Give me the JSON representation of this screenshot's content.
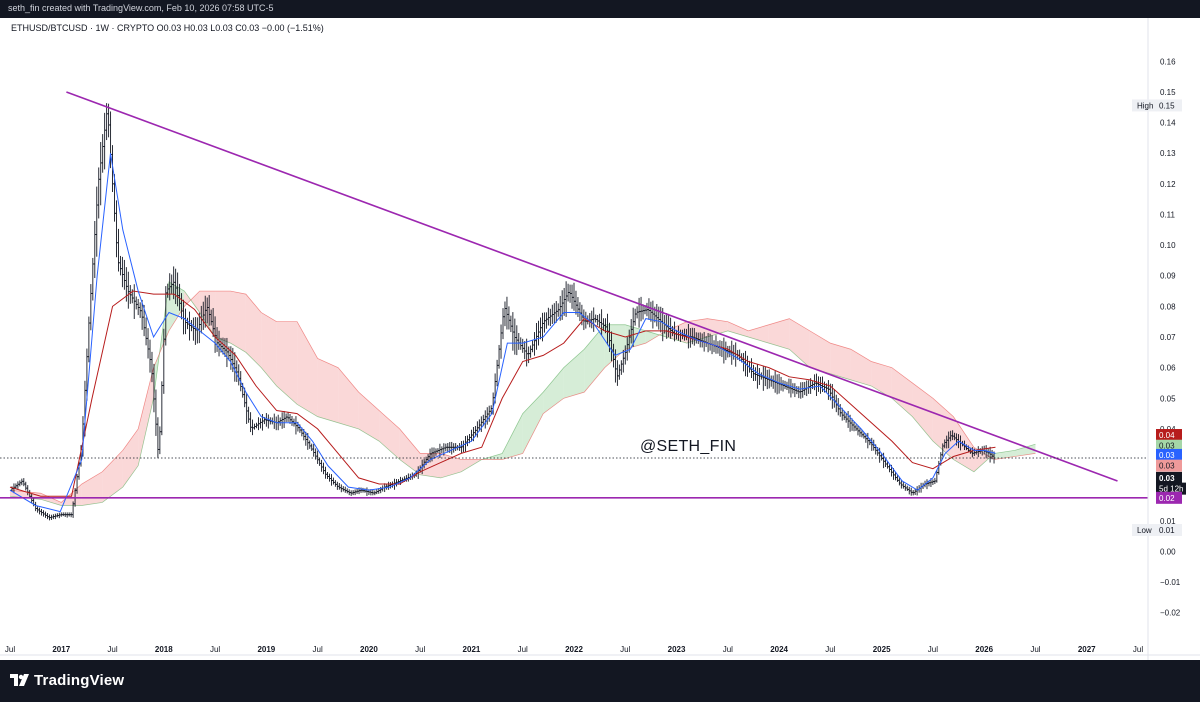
{
  "header": {
    "credit": "seth_fin created with TradingView.com, Feb 10, 2026 07:58 UTC-5"
  },
  "legend": {
    "symbol_line": "ETHUSD/BTCUSD · 1W · CRYPTO  O0.03  H0.03  L0.03  C0.03  −0.00 (−1.51%)"
  },
  "watermark": "@SETH_FIN",
  "footer": {
    "brand": "TradingView",
    "logo_icon": "tradingview-logo-icon"
  },
  "colors": {
    "candle": "#131722",
    "tenkan": "#2962ff",
    "kijun": "#b71c1c",
    "span_a": "#43a047",
    "span_b": "#e53935",
    "cloud_bull": "#a5d6a7",
    "cloud_bear": "#f4a9a9",
    "trendline": "#9c27b0",
    "support": "#9c27b0"
  },
  "chart_data": {
    "type": "line",
    "symbol": "ETHUSD/BTCUSD",
    "timeframe": "1W",
    "ylim": [
      -0.025,
      0.165
    ],
    "yticks": [
      "0.16",
      "0.15",
      "0.14",
      "0.13",
      "0.12",
      "0.11",
      "0.10",
      "0.09",
      "0.08",
      "0.07",
      "0.06",
      "0.05",
      "0.04",
      "0.03",
      "0.02",
      "0.01",
      "0.00",
      "−0.01",
      "−0.02"
    ],
    "ytick_values": [
      0.16,
      0.15,
      0.14,
      0.13,
      0.12,
      0.11,
      0.1,
      0.09,
      0.08,
      0.07,
      0.06,
      0.05,
      0.04,
      0.03,
      0.02,
      0.01,
      0.0,
      -0.01,
      -0.02
    ],
    "xlim": [
      2016.5,
      2027.5
    ],
    "xticks": [
      {
        "label": "Jul",
        "x": 2016.5
      },
      {
        "label": "2017",
        "x": 2017.0
      },
      {
        "label": "Jul",
        "x": 2017.5
      },
      {
        "label": "2018",
        "x": 2018.0
      },
      {
        "label": "Jul",
        "x": 2018.5
      },
      {
        "label": "2019",
        "x": 2019.0
      },
      {
        "label": "Jul",
        "x": 2019.5
      },
      {
        "label": "2020",
        "x": 2020.0
      },
      {
        "label": "Jul",
        "x": 2020.5
      },
      {
        "label": "2021",
        "x": 2021.0
      },
      {
        "label": "Jul",
        "x": 2021.5
      },
      {
        "label": "2022",
        "x": 2022.0
      },
      {
        "label": "Jul",
        "x": 2022.5
      },
      {
        "label": "2023",
        "x": 2023.0
      },
      {
        "label": "Jul",
        "x": 2023.5
      },
      {
        "label": "2024",
        "x": 2024.0
      },
      {
        "label": "Jul",
        "x": 2024.5
      },
      {
        "label": "2025",
        "x": 2025.0
      },
      {
        "label": "Jul",
        "x": 2025.5
      },
      {
        "label": "2026",
        "x": 2026.0
      },
      {
        "label": "Jul",
        "x": 2026.5
      },
      {
        "label": "2027",
        "x": 2027.0
      },
      {
        "label": "Jul",
        "x": 2027.5
      }
    ],
    "price": [
      [
        2016.5,
        0.02
      ],
      [
        2016.62,
        0.023
      ],
      [
        2016.75,
        0.014
      ],
      [
        2016.88,
        0.011
      ],
      [
        2016.99,
        0.012
      ],
      [
        2017.1,
        0.012
      ],
      [
        2017.2,
        0.035
      ],
      [
        2017.27,
        0.075
      ],
      [
        2017.36,
        0.12
      ],
      [
        2017.45,
        0.145
      ],
      [
        2017.55,
        0.095
      ],
      [
        2017.65,
        0.085
      ],
      [
        2017.78,
        0.078
      ],
      [
        2017.88,
        0.06
      ],
      [
        2017.95,
        0.03
      ],
      [
        2018.02,
        0.085
      ],
      [
        2018.1,
        0.088
      ],
      [
        2018.2,
        0.075
      ],
      [
        2018.32,
        0.072
      ],
      [
        2018.42,
        0.08
      ],
      [
        2018.52,
        0.068
      ],
      [
        2018.62,
        0.065
      ],
      [
        2018.72,
        0.058
      ],
      [
        2018.85,
        0.04
      ],
      [
        2018.98,
        0.043
      ],
      [
        2019.1,
        0.042
      ],
      [
        2019.2,
        0.044
      ],
      [
        2019.32,
        0.04
      ],
      [
        2019.45,
        0.033
      ],
      [
        2019.58,
        0.025
      ],
      [
        2019.7,
        0.021
      ],
      [
        2019.82,
        0.019
      ],
      [
        2019.92,
        0.02
      ],
      [
        2020.05,
        0.019
      ],
      [
        2020.15,
        0.021
      ],
      [
        2020.3,
        0.023
      ],
      [
        2020.45,
        0.025
      ],
      [
        2020.6,
        0.032
      ],
      [
        2020.75,
        0.034
      ],
      [
        2020.9,
        0.034
      ],
      [
        2021.05,
        0.04
      ],
      [
        2021.2,
        0.047
      ],
      [
        2021.32,
        0.08
      ],
      [
        2021.42,
        0.07
      ],
      [
        2021.55,
        0.064
      ],
      [
        2021.7,
        0.075
      ],
      [
        2021.85,
        0.079
      ],
      [
        2021.95,
        0.085
      ],
      [
        2022.1,
        0.075
      ],
      [
        2022.2,
        0.076
      ],
      [
        2022.32,
        0.073
      ],
      [
        2022.42,
        0.057
      ],
      [
        2022.5,
        0.065
      ],
      [
        2022.6,
        0.078
      ],
      [
        2022.72,
        0.079
      ],
      [
        2022.85,
        0.075
      ],
      [
        2022.98,
        0.071
      ],
      [
        2023.15,
        0.07
      ],
      [
        2023.3,
        0.068
      ],
      [
        2023.45,
        0.066
      ],
      [
        2023.6,
        0.064
      ],
      [
        2023.75,
        0.058
      ],
      [
        2023.9,
        0.056
      ],
      [
        2024.05,
        0.054
      ],
      [
        2024.2,
        0.052
      ],
      [
        2024.35,
        0.055
      ],
      [
        2024.48,
        0.053
      ],
      [
        2024.6,
        0.045
      ],
      [
        2024.75,
        0.04
      ],
      [
        2024.9,
        0.035
      ],
      [
        2025.05,
        0.028
      ],
      [
        2025.18,
        0.022
      ],
      [
        2025.3,
        0.019
      ],
      [
        2025.42,
        0.022
      ],
      [
        2025.52,
        0.023
      ],
      [
        2025.6,
        0.035
      ],
      [
        2025.68,
        0.038
      ],
      [
        2025.78,
        0.035
      ],
      [
        2025.88,
        0.032
      ],
      [
        2025.98,
        0.033
      ],
      [
        2026.05,
        0.032
      ],
      [
        2026.11,
        0.03
      ]
    ],
    "tenkan": [
      [
        2016.5,
        0.02
      ],
      [
        2016.75,
        0.015
      ],
      [
        2016.99,
        0.013
      ],
      [
        2017.2,
        0.03
      ],
      [
        2017.35,
        0.09
      ],
      [
        2017.48,
        0.13
      ],
      [
        2017.6,
        0.105
      ],
      [
        2017.75,
        0.085
      ],
      [
        2017.9,
        0.07
      ],
      [
        2018.05,
        0.078
      ],
      [
        2018.2,
        0.076
      ],
      [
        2018.35,
        0.072
      ],
      [
        2018.5,
        0.068
      ],
      [
        2018.65,
        0.062
      ],
      [
        2018.8,
        0.052
      ],
      [
        2018.95,
        0.044
      ],
      [
        2019.1,
        0.042
      ],
      [
        2019.3,
        0.042
      ],
      [
        2019.45,
        0.036
      ],
      [
        2019.6,
        0.028
      ],
      [
        2019.8,
        0.021
      ],
      [
        2020.0,
        0.02
      ],
      [
        2020.2,
        0.021
      ],
      [
        2020.4,
        0.024
      ],
      [
        2020.6,
        0.03
      ],
      [
        2020.8,
        0.033
      ],
      [
        2021.0,
        0.036
      ],
      [
        2021.2,
        0.045
      ],
      [
        2021.35,
        0.068
      ],
      [
        2021.5,
        0.068
      ],
      [
        2021.7,
        0.07
      ],
      [
        2021.9,
        0.078
      ],
      [
        2022.05,
        0.078
      ],
      [
        2022.2,
        0.074
      ],
      [
        2022.4,
        0.064
      ],
      [
        2022.55,
        0.066
      ],
      [
        2022.7,
        0.076
      ],
      [
        2022.85,
        0.075
      ],
      [
        2023.0,
        0.072
      ],
      [
        2023.2,
        0.069
      ],
      [
        2023.4,
        0.067
      ],
      [
        2023.6,
        0.063
      ],
      [
        2023.8,
        0.058
      ],
      [
        2024.0,
        0.055
      ],
      [
        2024.2,
        0.053
      ],
      [
        2024.4,
        0.054
      ],
      [
        2024.6,
        0.047
      ],
      [
        2024.8,
        0.04
      ],
      [
        2025.0,
        0.032
      ],
      [
        2025.2,
        0.023
      ],
      [
        2025.35,
        0.02
      ],
      [
        2025.5,
        0.024
      ],
      [
        2025.62,
        0.032
      ],
      [
        2025.75,
        0.036
      ],
      [
        2025.9,
        0.033
      ],
      [
        2026.0,
        0.033
      ],
      [
        2026.11,
        0.032
      ]
    ],
    "kijun": [
      [
        2016.5,
        0.021
      ],
      [
        2016.8,
        0.018
      ],
      [
        2017.1,
        0.018
      ],
      [
        2017.3,
        0.05
      ],
      [
        2017.5,
        0.08
      ],
      [
        2017.7,
        0.085
      ],
      [
        2017.9,
        0.084
      ],
      [
        2018.1,
        0.084
      ],
      [
        2018.3,
        0.079
      ],
      [
        2018.5,
        0.07
      ],
      [
        2018.7,
        0.064
      ],
      [
        2018.9,
        0.054
      ],
      [
        2019.1,
        0.046
      ],
      [
        2019.3,
        0.045
      ],
      [
        2019.5,
        0.04
      ],
      [
        2019.7,
        0.032
      ],
      [
        2019.9,
        0.024
      ],
      [
        2020.1,
        0.022
      ],
      [
        2020.3,
        0.022
      ],
      [
        2020.5,
        0.026
      ],
      [
        2020.7,
        0.029
      ],
      [
        2020.9,
        0.032
      ],
      [
        2021.1,
        0.034
      ],
      [
        2021.3,
        0.05
      ],
      [
        2021.5,
        0.062
      ],
      [
        2021.7,
        0.064
      ],
      [
        2021.9,
        0.068
      ],
      [
        2022.1,
        0.076
      ],
      [
        2022.3,
        0.072
      ],
      [
        2022.5,
        0.07
      ],
      [
        2022.7,
        0.072
      ],
      [
        2022.9,
        0.072
      ],
      [
        2023.1,
        0.07
      ],
      [
        2023.3,
        0.068
      ],
      [
        2023.5,
        0.066
      ],
      [
        2023.7,
        0.062
      ],
      [
        2023.9,
        0.06
      ],
      [
        2024.1,
        0.057
      ],
      [
        2024.3,
        0.056
      ],
      [
        2024.5,
        0.054
      ],
      [
        2024.7,
        0.048
      ],
      [
        2024.9,
        0.042
      ],
      [
        2025.1,
        0.036
      ],
      [
        2025.3,
        0.029
      ],
      [
        2025.5,
        0.027
      ],
      [
        2025.7,
        0.031
      ],
      [
        2025.9,
        0.033
      ],
      [
        2026.11,
        0.034
      ]
    ],
    "cloud": [
      [
        2016.5,
        0.018,
        0.02
      ],
      [
        2016.8,
        0.017,
        0.019
      ],
      [
        2017.0,
        0.015,
        0.016
      ],
      [
        2017.2,
        0.015,
        0.022
      ],
      [
        2017.4,
        0.016,
        0.026
      ],
      [
        2017.6,
        0.021,
        0.033
      ],
      [
        2017.75,
        0.028,
        0.04
      ],
      [
        2017.9,
        0.05,
        0.06
      ],
      [
        2018.05,
        0.088,
        0.072
      ],
      [
        2018.2,
        0.085,
        0.08
      ],
      [
        2018.35,
        0.078,
        0.085
      ],
      [
        2018.5,
        0.07,
        0.085
      ],
      [
        2018.65,
        0.068,
        0.085
      ],
      [
        2018.8,
        0.065,
        0.084
      ],
      [
        2018.95,
        0.06,
        0.078
      ],
      [
        2019.1,
        0.054,
        0.075
      ],
      [
        2019.3,
        0.048,
        0.075
      ],
      [
        2019.5,
        0.044,
        0.063
      ],
      [
        2019.7,
        0.042,
        0.06
      ],
      [
        2019.9,
        0.04,
        0.052
      ],
      [
        2020.1,
        0.036,
        0.046
      ],
      [
        2020.3,
        0.03,
        0.04
      ],
      [
        2020.5,
        0.025,
        0.032
      ],
      [
        2020.7,
        0.024,
        0.032
      ],
      [
        2020.9,
        0.026,
        0.03
      ],
      [
        2021.1,
        0.03,
        0.03
      ],
      [
        2021.3,
        0.032,
        0.03
      ],
      [
        2021.5,
        0.045,
        0.032
      ],
      [
        2021.7,
        0.052,
        0.045
      ],
      [
        2021.9,
        0.06,
        0.05
      ],
      [
        2022.1,
        0.066,
        0.052
      ],
      [
        2022.3,
        0.074,
        0.06
      ],
      [
        2022.5,
        0.074,
        0.066
      ],
      [
        2022.7,
        0.072,
        0.068
      ],
      [
        2022.9,
        0.07,
        0.072
      ],
      [
        2023.1,
        0.068,
        0.075
      ],
      [
        2023.3,
        0.07,
        0.076
      ],
      [
        2023.5,
        0.072,
        0.075
      ],
      [
        2023.7,
        0.07,
        0.072
      ],
      [
        2023.9,
        0.068,
        0.074
      ],
      [
        2024.1,
        0.066,
        0.076
      ],
      [
        2024.3,
        0.06,
        0.072
      ],
      [
        2024.5,
        0.058,
        0.068
      ],
      [
        2024.7,
        0.056,
        0.066
      ],
      [
        2024.9,
        0.054,
        0.062
      ],
      [
        2025.1,
        0.05,
        0.06
      ],
      [
        2025.3,
        0.044,
        0.055
      ],
      [
        2025.5,
        0.036,
        0.05
      ],
      [
        2025.7,
        0.03,
        0.044
      ],
      [
        2025.9,
        0.026,
        0.034
      ],
      [
        2026.1,
        0.032,
        0.03
      ],
      [
        2026.3,
        0.033,
        0.031
      ],
      [
        2026.5,
        0.035,
        0.032
      ]
    ],
    "trendline": [
      [
        2017.05,
        0.15
      ],
      [
        2027.3,
        0.023
      ]
    ],
    "support_level": 0.0175,
    "last_price": 0.0305,
    "axis_labels": [
      {
        "text": "High",
        "value": "0.15",
        "y": 0.1456,
        "style": "plain"
      },
      {
        "text": "",
        "value": "0.04",
        "y": 0.038,
        "style": "kijun"
      },
      {
        "text": "",
        "value": "0.03",
        "y": 0.0345,
        "style": "span_a"
      },
      {
        "text": "",
        "value": "0.03",
        "y": 0.0315,
        "style": "tenkan"
      },
      {
        "text": "",
        "value": "0.03",
        "y": 0.028,
        "style": "span_b"
      },
      {
        "text": "",
        "value": "0.03",
        "y": 0.024,
        "style": "price"
      },
      {
        "text": "",
        "value": "5d 12h",
        "y": 0.0205,
        "style": "countdown"
      },
      {
        "text": "",
        "value": "0.02",
        "y": 0.0175,
        "style": "support"
      },
      {
        "text": "Low",
        "value": "0.01",
        "y": 0.007,
        "style": "plain"
      }
    ]
  }
}
